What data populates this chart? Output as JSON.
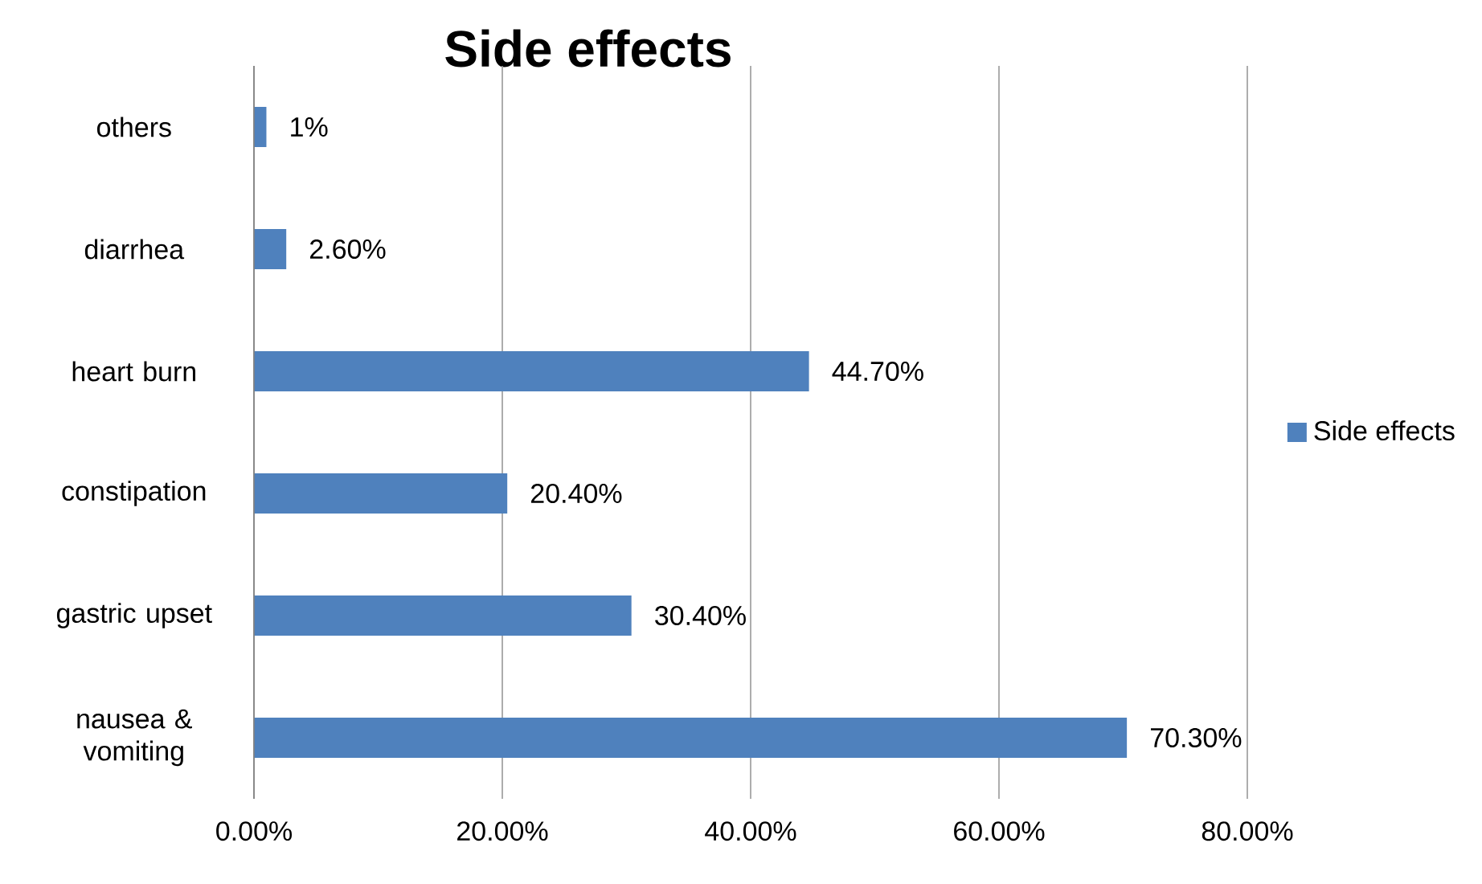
{
  "chart_data": {
    "type": "bar",
    "orientation": "horizontal",
    "title": "Side effects",
    "categories": [
      "others",
      "diarrhea",
      "heart burn",
      "constipation",
      "gastric upset",
      "nausea & vomiting"
    ],
    "series": [
      {
        "name": "Side effects",
        "color": "#4f81bd",
        "values": [
          1,
          2.6,
          44.7,
          20.4,
          30.4,
          70.3
        ],
        "value_labels": [
          "1%",
          "2.60%",
          "44.70%",
          "20.40%",
          "30.40%",
          "70.30%"
        ]
      }
    ],
    "xlim": [
      0,
      80
    ],
    "xticks": [
      {
        "value": 0,
        "label": "0.00%"
      },
      {
        "value": 20,
        "label": "20.00%"
      },
      {
        "value": 40,
        "label": "40.00%"
      },
      {
        "value": 60,
        "label": "60.00%"
      },
      {
        "value": 80,
        "label": "80.00%"
      }
    ],
    "grid": "x",
    "legend": "right"
  }
}
